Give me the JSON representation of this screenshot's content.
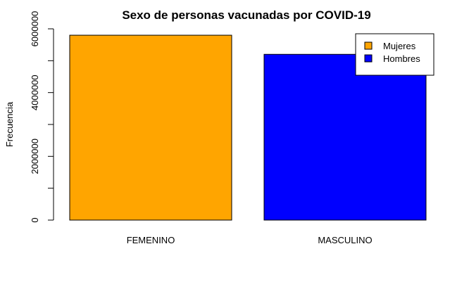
{
  "chart_data": {
    "type": "bar",
    "title": "Sexo de personas vacunadas por COVID-19",
    "xlabel": "",
    "ylabel": "Frecuencia",
    "categories": [
      "FEMENINO",
      "MASCULINO"
    ],
    "values": [
      5800000,
      5200000
    ],
    "colors": [
      "#FFA500",
      "#0000FF"
    ],
    "ylim": [
      0,
      6000000
    ],
    "yticks": [
      0,
      1000000,
      2000000,
      3000000,
      4000000,
      5000000,
      6000000
    ],
    "ytick_labels": [
      "0",
      "",
      "2000000",
      "",
      "4000000",
      "",
      "6000000"
    ],
    "legend": {
      "position": "top-right",
      "entries": [
        {
          "label": "Mujeres",
          "color": "#FFA500"
        },
        {
          "label": "Hombres",
          "color": "#0000FF"
        }
      ]
    },
    "grid": false
  }
}
